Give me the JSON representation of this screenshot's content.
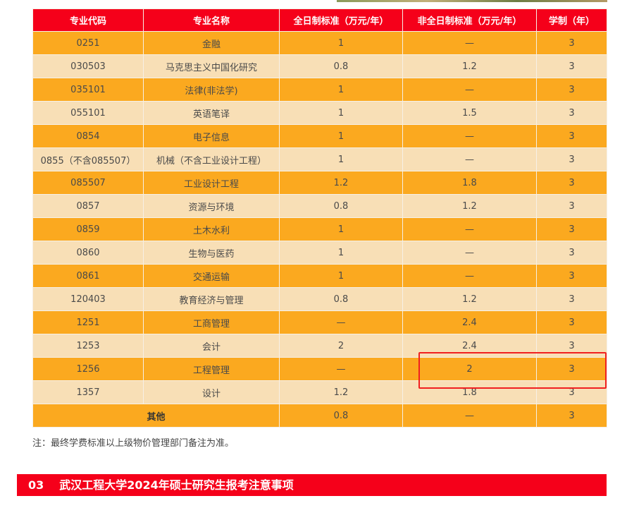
{
  "table": {
    "headers": [
      "专业代码",
      "专业名称",
      "全日制标准（万元/年）",
      "非全日制标准（万元/年）",
      "学制（年）"
    ],
    "rows": [
      [
        "0251",
        "金融",
        "1",
        "—",
        "3"
      ],
      [
        "030503",
        "马克思主义中国化研究",
        "0.8",
        "1.2",
        "3"
      ],
      [
        "035101",
        "法律(非法学)",
        "1",
        "—",
        "3"
      ],
      [
        "055101",
        "英语笔译",
        "1",
        "1.5",
        "3"
      ],
      [
        "0854",
        "电子信息",
        "1",
        "—",
        "3"
      ],
      [
        "0855（不含085507）",
        "机械（不含工业设计工程）",
        "1",
        "—",
        "3"
      ],
      [
        "085507",
        "工业设计工程",
        "1.2",
        "1.8",
        "3"
      ],
      [
        "0857",
        "资源与环境",
        "0.8",
        "1.2",
        "3"
      ],
      [
        "0859",
        "土木水利",
        "1",
        "—",
        "3"
      ],
      [
        "0860",
        "生物与医药",
        "1",
        "—",
        "3"
      ],
      [
        "0861",
        "交通运输",
        "1",
        "—",
        "3"
      ],
      [
        "120403",
        "教育经济与管理",
        "0.8",
        "1.2",
        "3"
      ],
      [
        "1251",
        "工商管理",
        "—",
        "2.4",
        "3"
      ],
      [
        "1253",
        "会计",
        "2",
        "2.4",
        "3"
      ],
      [
        "1256",
        "工程管理",
        "—",
        "2",
        "3"
      ],
      [
        "1357",
        "设计",
        "1.2",
        "1.8",
        "3"
      ]
    ],
    "other": {
      "label": "其他",
      "full": "0.8",
      "part": "—",
      "years": "3"
    }
  },
  "note": "注：最终学费标准以上级物价管理部门备注为准。",
  "banner": {
    "number": "03",
    "title": "武汉工程大学2024年硕士研究生报考注意事项"
  },
  "colors": {
    "header": "#f5001a",
    "row_orange": "#fba91f",
    "row_cream": "#f8dfb6",
    "highlight": "#f02020"
  }
}
